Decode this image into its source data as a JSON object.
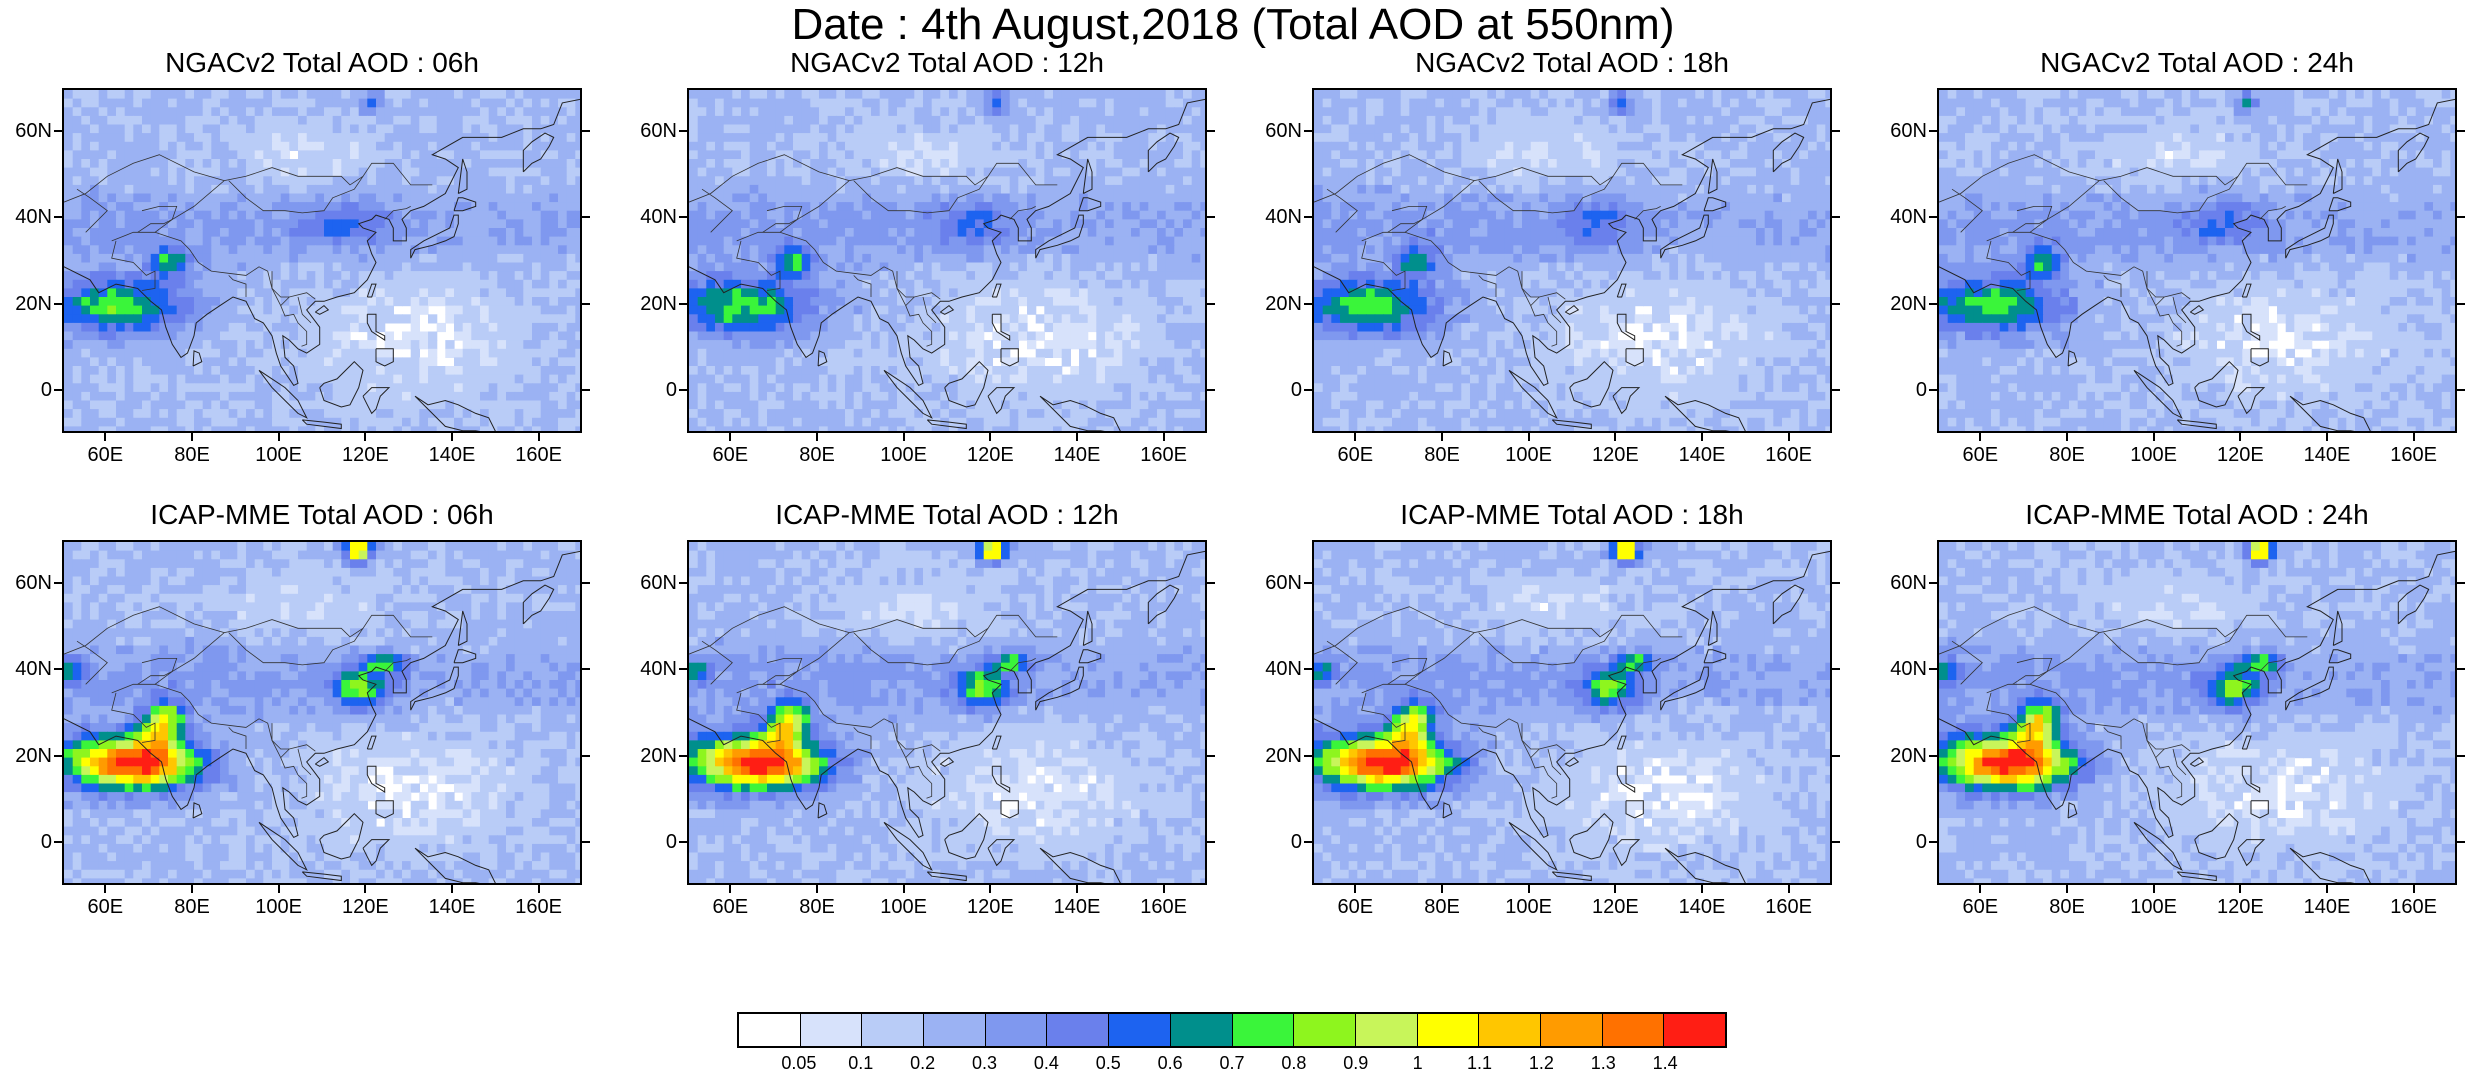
{
  "title": "Date : 4th August,2018 (Total AOD at 550nm)",
  "panels": [
    {
      "title": "NGACv2 Total AOD : 06h",
      "model": "NGACv2",
      "hour": "06h"
    },
    {
      "title": "NGACv2 Total AOD : 12h",
      "model": "NGACv2",
      "hour": "12h"
    },
    {
      "title": "NGACv2 Total AOD : 18h",
      "model": "NGACv2",
      "hour": "18h"
    },
    {
      "title": "NGACv2 Total AOD : 24h",
      "model": "NGACv2",
      "hour": "24h"
    },
    {
      "title": "ICAP-MME Total AOD : 06h",
      "model": "ICAP-MME",
      "hour": "06h"
    },
    {
      "title": "ICAP-MME Total AOD : 12h",
      "model": "ICAP-MME",
      "hour": "12h"
    },
    {
      "title": "ICAP-MME Total AOD : 18h",
      "model": "ICAP-MME",
      "hour": "18h"
    },
    {
      "title": "ICAP-MME Total AOD : 24h",
      "model": "ICAP-MME",
      "hour": "24h"
    }
  ],
  "lat_labels": [
    "60N",
    "40N",
    "20N",
    "0"
  ],
  "lon_labels": [
    "60E",
    "80E",
    "100E",
    "120E",
    "140E",
    "160E"
  ],
  "map_extent": {
    "lon": [
      50,
      170
    ],
    "lat": [
      -10,
      70
    ]
  },
  "colorbar": {
    "levels": [
      "0.05",
      "0.1",
      "0.2",
      "0.3",
      "0.4",
      "0.5",
      "0.6",
      "0.7",
      "0.8",
      "0.9",
      "1",
      "1.1",
      "1.2",
      "1.3",
      "1.4"
    ],
    "colors": [
      "#ffffff",
      "#d7e2fb",
      "#b9ccf7",
      "#9bb2f3",
      "#7f98ef",
      "#6a80ec",
      "#1d63f0",
      "#008f8c",
      "#3af53a",
      "#8ef51e",
      "#c8f55a",
      "#ffff00",
      "#ffc600",
      "#ff9b00",
      "#ff7100",
      "#ff1e14"
    ]
  }
}
